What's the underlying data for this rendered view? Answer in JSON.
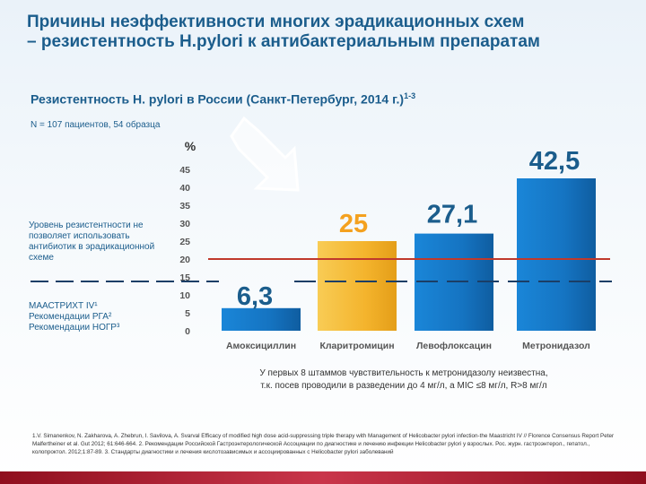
{
  "title": {
    "line1": "Причины неэффективности многих эрадикационных  схем",
    "line2": "– резистентность H.pylori к антибактериальным препаратам"
  },
  "subtitle": {
    "text": "Резистентность H. pylori в России (Санкт-Петербург, 2014 г.)",
    "sup": "1-3"
  },
  "sample_note": "N = 107 пациентов, 54 образца",
  "threshold_note": "Уровень резистентности не позволяет использовать антибиотик в эрадикационной схеме",
  "guidelines": [
    "МААСТРИХТ IV¹",
    "Рекомендации РГА²",
    "Рекомендации НОГР³"
  ],
  "metro_note": {
    "line1": "У первых 8 штаммов чувствительность к метронидазолу неизвестна,",
    "line2": "т.к. посев проводили в разведении до 4 мг/л, а MIC ≤8 мг/л, R>8 мг/л"
  },
  "references": "1.V. Simanenkov, N. Zakharova, A. Zhebrun, I. Savilova, A. Svarval Efficacy of modified high dose acid-suppressing triple therapy with Management of Helicobacter pylori infection-the Maastricht IV // Florence Consensus Report Peter Malfertheiner et al. Gut 2012; 61:646-664. 2. Рекомендации Российской Гастроэнтерологической Ассоциации по диагностике и лечению инфекции Helicobacter pylori у взрослых. Рос. журн. гастроэнтерол., гепатол., колопроктол. 2012;1:87-89. 3. Стандарты диагностики и лечения кислотозависимых и ассоциированных с Helicobacter pylori заболеваний",
  "colors": {
    "title": "#1b5d8c",
    "bar_blue": "#1574c2",
    "bar_yellow": "#f4b42d",
    "threshold_line": "#c0392b",
    "value_label": "#1b5d8c",
    "value_label_highlight": "#f4a11f",
    "bottom_band": "#a31d2f"
  },
  "chart_data": {
    "type": "bar",
    "ylabel": "%",
    "ylim": [
      0,
      45
    ],
    "yticks": [
      0,
      5,
      10,
      15,
      20,
      25,
      30,
      35,
      40,
      45
    ],
    "categories": [
      "Амоксициллин",
      "Кларитромицин",
      "Левофлоксацин",
      "Метронидазол"
    ],
    "values": [
      6.3,
      25,
      27.1,
      42.5
    ],
    "value_labels": [
      "6,3",
      "25",
      "27,1",
      "42,5"
    ],
    "highlight_index": 1,
    "threshold": 20,
    "grid": false,
    "legend": "none"
  }
}
